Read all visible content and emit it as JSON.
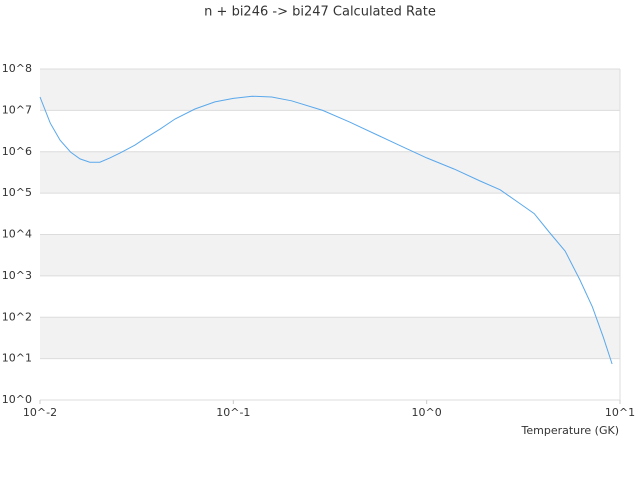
{
  "chart_data": {
    "type": "line",
    "title": "n + bi246 -> bi247 Calculated Rate",
    "x_label": "Temperature (GK)",
    "log_x": true,
    "log_y": true,
    "grid": true,
    "xlim": [
      0.01,
      10
    ],
    "ylim": [
      1,
      100000000
    ],
    "xticks": [
      {
        "value": 0.01,
        "label": "10^-2"
      },
      {
        "value": 0.1,
        "label": "10^-1"
      },
      {
        "value": 1,
        "label": "10^0"
      },
      {
        "value": 10,
        "label": "10^1"
      }
    ],
    "yticks": [
      {
        "value": 1,
        "label": "10^0"
      },
      {
        "value": 10,
        "label": "10^1"
      },
      {
        "value": 100,
        "label": "10^2"
      },
      {
        "value": 1000,
        "label": "10^3"
      },
      {
        "value": 10000,
        "label": "10^4"
      },
      {
        "value": 100000,
        "label": "10^5"
      },
      {
        "value": 1000000,
        "label": "10^6"
      },
      {
        "value": 10000000,
        "label": "10^7"
      },
      {
        "value": 100000000,
        "label": "10^8"
      }
    ],
    "series": [
      {
        "color": "#5aa8ec",
        "x": [
          0.01,
          0.0113,
          0.0127,
          0.0144,
          0.0161,
          0.0181,
          0.0204,
          0.023,
          0.0259,
          0.031,
          0.0349,
          0.0417,
          0.0499,
          0.0633,
          0.0803,
          0.1,
          0.125,
          0.158,
          0.2,
          0.29,
          0.4,
          0.57,
          0.73,
          1.0,
          1.39,
          1.89,
          2.4,
          3.0,
          3.6,
          4.3,
          5.2,
          6.2,
          7.2,
          8.2,
          9.1
        ],
        "values": [
          21000000,
          4900000,
          1900000,
          980000,
          670000,
          560000,
          560000,
          710000,
          930000,
          1450000,
          2100000,
          3500000,
          6200000,
          10800000,
          16000000,
          19500000,
          22000000,
          21000000,
          17000000,
          10000000,
          5200000,
          2400000,
          1400000,
          710000,
          380000,
          196000,
          120000,
          58000,
          32000,
          11500,
          4000,
          800,
          178,
          33,
          7.4
        ]
      }
    ]
  }
}
